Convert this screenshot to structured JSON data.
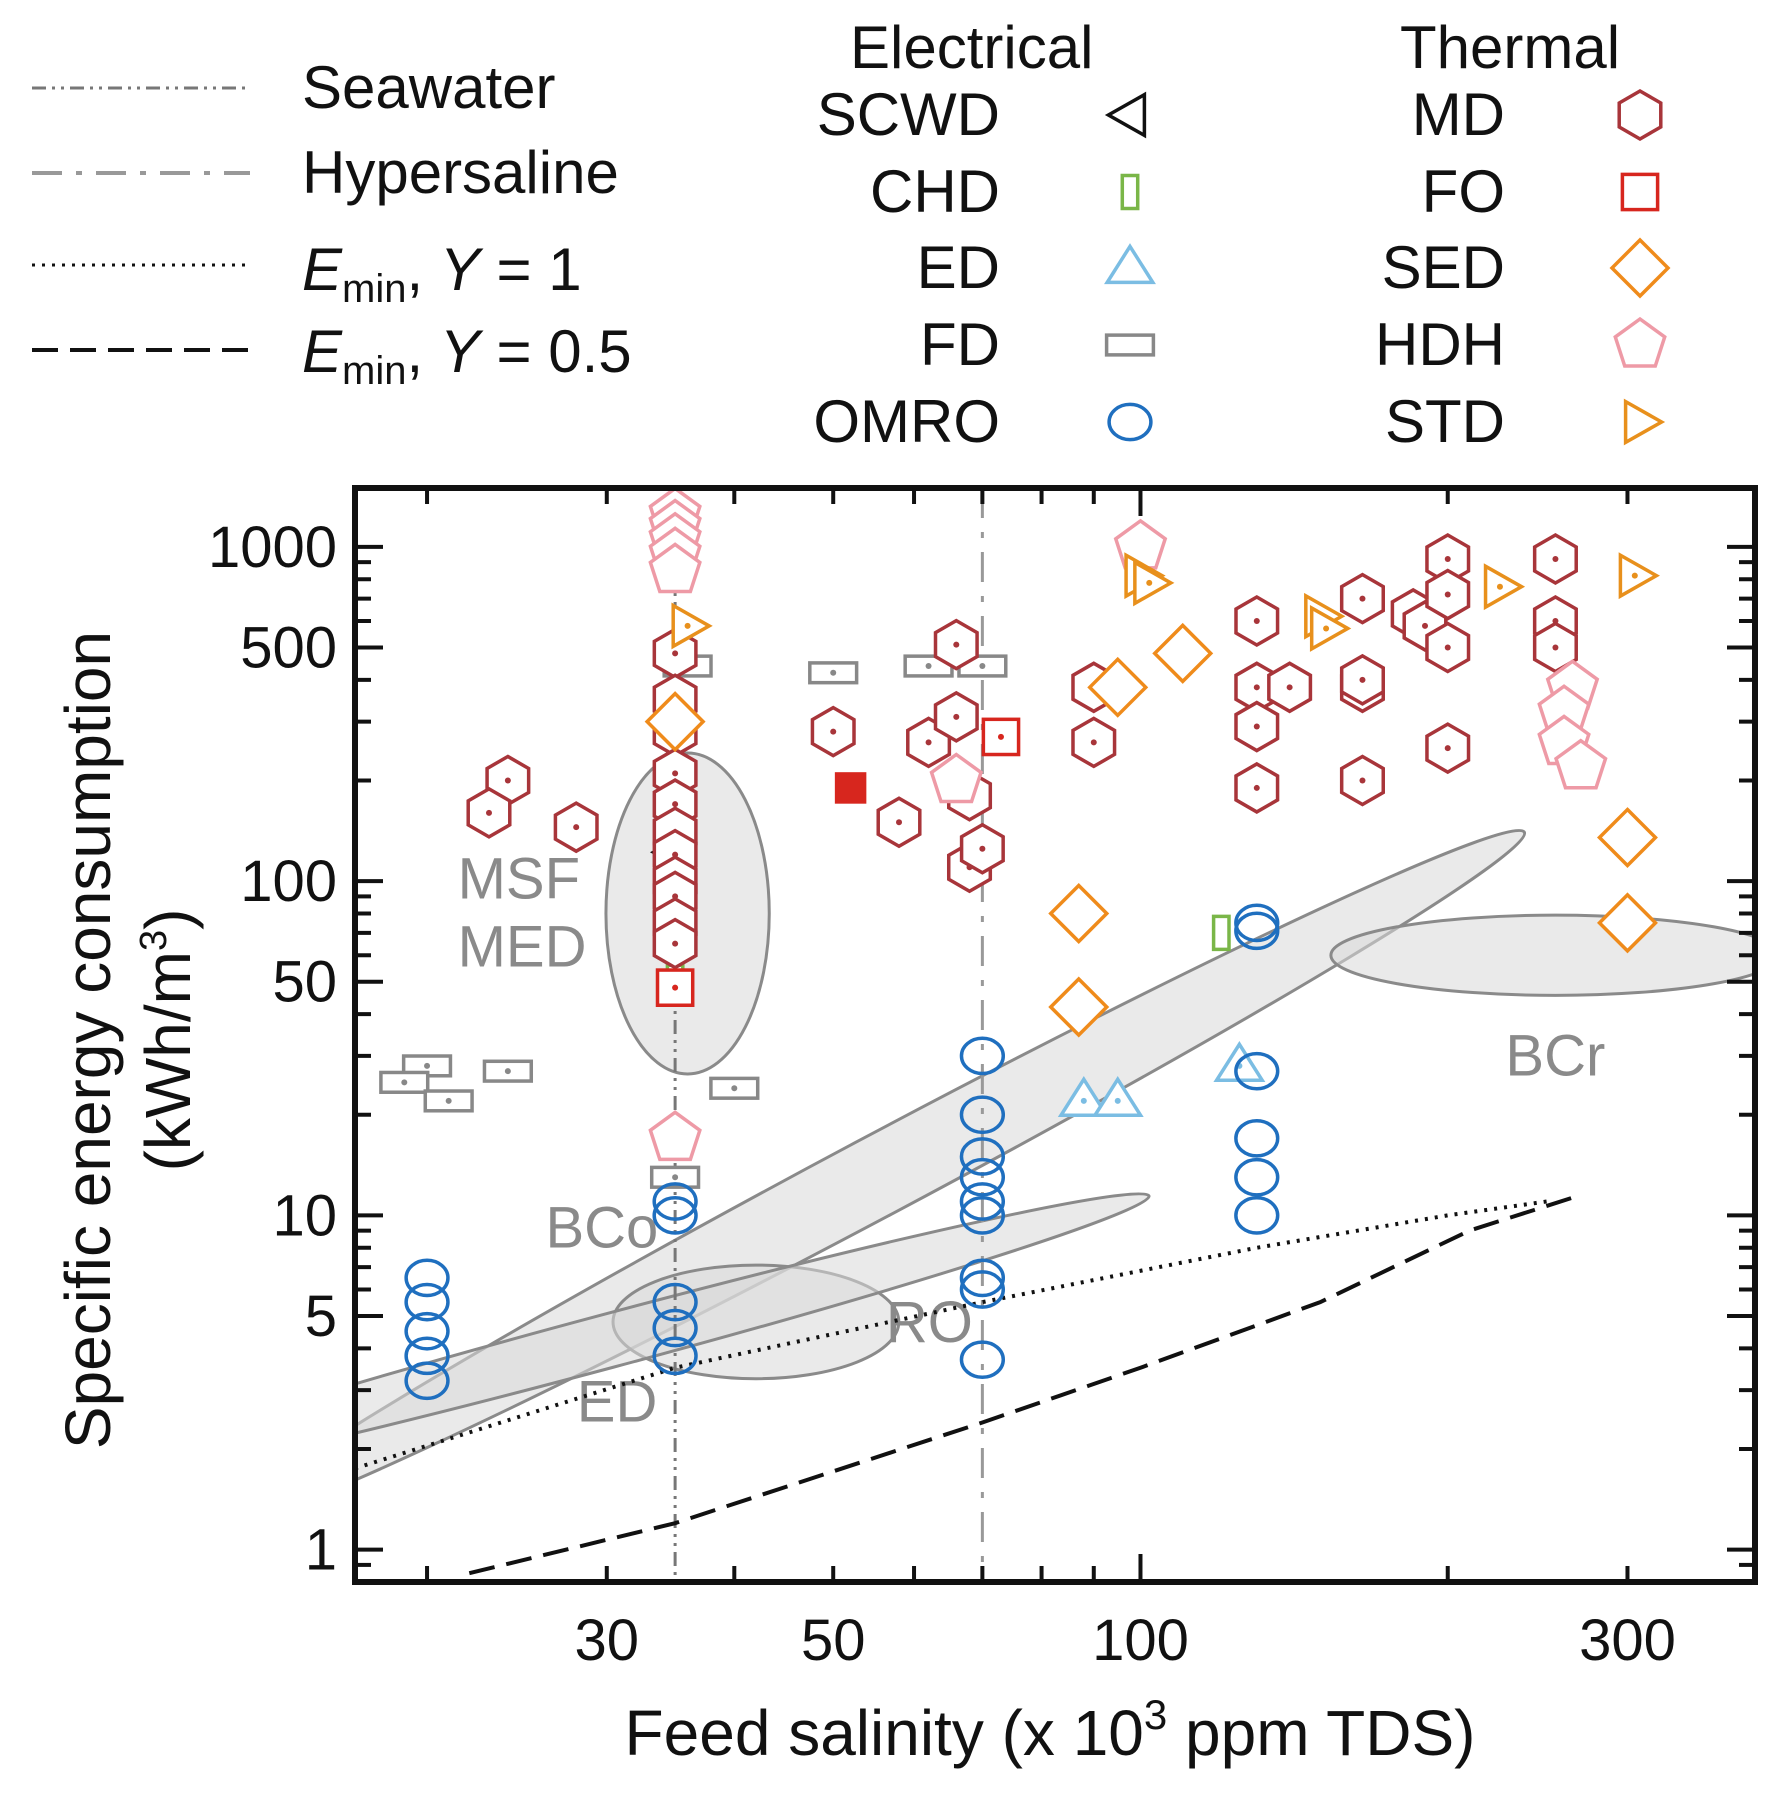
{
  "chart_data": {
    "type": "scatter",
    "x_scale": "log",
    "y_scale": "log",
    "xlabel_main": "Feed salinity (x 10",
    "xlabel_sup": "3",
    "xlabel_end": " ppm TDS)",
    "ylabel_line1": "Specific energy consumption",
    "ylabel_line2_main": "(kWh/m",
    "ylabel_line2_sup": "3",
    "ylabel_line2_end": ")",
    "xlim": [
      17,
      400
    ],
    "ylim": [
      0.8,
      1500
    ],
    "x_ticks": [
      {
        "value": 30,
        "label": "30"
      },
      {
        "value": 50,
        "label": "50"
      },
      {
        "value": 100,
        "label": "100"
      },
      {
        "value": 300,
        "label": "300"
      }
    ],
    "y_ticks": [
      {
        "value": 1,
        "label": "1"
      },
      {
        "value": 5,
        "label": "5"
      },
      {
        "value": 10,
        "label": "10"
      },
      {
        "value": 50,
        "label": "50"
      },
      {
        "value": 100,
        "label": "100"
      },
      {
        "value": 500,
        "label": "500"
      },
      {
        "value": 1000,
        "label": "1000"
      }
    ],
    "legend_headers": {
      "electrical": "Electrical",
      "thermal": "Thermal"
    },
    "line_legend": [
      {
        "key": "seawater",
        "label": "Seawater",
        "style": "dashdotdot"
      },
      {
        "key": "hypersaline",
        "label": "Hypersaline",
        "style": "dashdot"
      },
      {
        "key": "emin1",
        "label_italic": "E",
        "label_sub": "min",
        "label_mid": ", ",
        "label_italic2": "Y",
        "label_end": " = 1",
        "style": "dotted"
      },
      {
        "key": "emin05",
        "label_italic": "E",
        "label_sub": "min",
        "label_mid": ", ",
        "label_italic2": "Y",
        "label_end": " = 0.5",
        "style": "dashed"
      }
    ],
    "reference_lines": {
      "seawater_x": 35,
      "hypersaline_x": 70,
      "emin_y1": [
        [
          17,
          1.75
        ],
        [
          35,
          3.5
        ],
        [
          70,
          5.5
        ],
        [
          130,
          8
        ],
        [
          200,
          10
        ],
        [
          250,
          11
        ]
      ],
      "emin_y05": [
        [
          22,
          0.85
        ],
        [
          35,
          1.2
        ],
        [
          70,
          2.4
        ],
        [
          100,
          3.5
        ],
        [
          150,
          5.5
        ],
        [
          210,
          9
        ],
        [
          270,
          11.5
        ]
      ]
    },
    "regions": [
      {
        "label": "MSF",
        "label2": "MED",
        "cx": 36,
        "cy": 80,
        "rx_log": 0.08,
        "ry_log": 0.48,
        "angle": 0
      },
      {
        "label": "BCo",
        "cx": 55,
        "cy": 13,
        "rx_log": 0.72,
        "ry_log": 0.12,
        "angle": -28
      },
      {
        "label": "RO",
        "cx": 42,
        "cy": 4.8,
        "rx_log": 0.14,
        "ry_log": 0.17,
        "angle": 0
      },
      {
        "label": "ED",
        "cx": 30,
        "cy": 4.2,
        "rx_log": 0.55,
        "ry_log": 0.08,
        "angle": -15
      },
      {
        "label": "BCr",
        "cx": 255,
        "cy": 60,
        "rx_log": 0.22,
        "ry_log": 0.12,
        "angle": 0
      }
    ],
    "series": [
      {
        "name": "SCWD",
        "group": "Electrical",
        "marker": "triangle-left",
        "color": "#111111",
        "points": [
          [
            35,
            122
          ]
        ]
      },
      {
        "name": "CHD",
        "group": "Electrical",
        "marker": "small-rect",
        "color": "#7ab648",
        "points": [
          [
            35,
            50
          ],
          [
            120,
            70
          ]
        ]
      },
      {
        "name": "ED",
        "group": "Electrical",
        "marker": "triangle-up",
        "color": "#7bbde3",
        "points": [
          [
            88,
            22
          ],
          [
            95,
            22
          ],
          [
            125,
            28
          ]
        ]
      },
      {
        "name": "FD",
        "group": "Electrical",
        "marker": "flat-rect",
        "color": "#888888",
        "points": [
          [
            20,
            28
          ],
          [
            19,
            25
          ],
          [
            21,
            22
          ],
          [
            24,
            27
          ],
          [
            40,
            24
          ],
          [
            35,
            13
          ],
          [
            36,
            440
          ],
          [
            50,
            420
          ],
          [
            62,
            440
          ],
          [
            70,
            440
          ]
        ]
      },
      {
        "name": "OMRO",
        "group": "Electrical",
        "marker": "circle",
        "color": "#1f6fbf",
        "points": [
          [
            20,
            6.5
          ],
          [
            20,
            5.5
          ],
          [
            20,
            4.5
          ],
          [
            20,
            3.8
          ],
          [
            20,
            3.2
          ],
          [
            35,
            11
          ],
          [
            35,
            10
          ],
          [
            35,
            5.5
          ],
          [
            35,
            4.6
          ],
          [
            35,
            3.8
          ],
          [
            70,
            30
          ],
          [
            70,
            20
          ],
          [
            70,
            15
          ],
          [
            70,
            13
          ],
          [
            70,
            11
          ],
          [
            70,
            10
          ],
          [
            70,
            6.5
          ],
          [
            70,
            6
          ],
          [
            70,
            3.7
          ],
          [
            130,
            75
          ],
          [
            130,
            71
          ],
          [
            130,
            27
          ],
          [
            130,
            17
          ],
          [
            130,
            13
          ],
          [
            130,
            10
          ]
        ]
      },
      {
        "name": "MD",
        "group": "Thermal",
        "marker": "hexagon",
        "color": "#a8353a",
        "points": [
          [
            24,
            200
          ],
          [
            23,
            160
          ],
          [
            28,
            145
          ],
          [
            35,
            480
          ],
          [
            35,
            350
          ],
          [
            35,
            280
          ],
          [
            35,
            210
          ],
          [
            35,
            170
          ],
          [
            35,
            140
          ],
          [
            35,
            120
          ],
          [
            35,
            100
          ],
          [
            35,
            90
          ],
          [
            35,
            75
          ],
          [
            35,
            65
          ],
          [
            50,
            280
          ],
          [
            58,
            150
          ],
          [
            62,
            260
          ],
          [
            66,
            510
          ],
          [
            66,
            310
          ],
          [
            68,
            180
          ],
          [
            68,
            110
          ],
          [
            70,
            125
          ],
          [
            90,
            380
          ],
          [
            90,
            260
          ],
          [
            130,
            600
          ],
          [
            130,
            380
          ],
          [
            130,
            290
          ],
          [
            130,
            190
          ],
          [
            140,
            380
          ],
          [
            165,
            700
          ],
          [
            165,
            380
          ],
          [
            165,
            400
          ],
          [
            165,
            200
          ],
          [
            185,
            630
          ],
          [
            190,
            580
          ],
          [
            200,
            920
          ],
          [
            200,
            720
          ],
          [
            200,
            500
          ],
          [
            200,
            250
          ],
          [
            255,
            920
          ],
          [
            255,
            600
          ],
          [
            255,
            500
          ]
        ]
      },
      {
        "name": "FO",
        "group": "Thermal",
        "marker": "square",
        "color": "#d7261e",
        "points": [
          [
            73,
            270
          ],
          [
            35,
            48
          ]
        ]
      },
      {
        "name": "FO (filled)",
        "group": "Thermal",
        "marker": "filled-square",
        "color": "#d7261e",
        "points": [
          [
            52,
            190
          ]
        ]
      },
      {
        "name": "SED",
        "group": "Thermal",
        "marker": "diamond",
        "color": "#ef8b1b",
        "points": [
          [
            35,
            300
          ],
          [
            95,
            380
          ],
          [
            110,
            480
          ],
          [
            87,
            80
          ],
          [
            87,
            42
          ],
          [
            300,
            135
          ],
          [
            300,
            75
          ]
        ]
      },
      {
        "name": "HDH",
        "group": "Thermal",
        "marker": "pentagon",
        "color": "#ee9aa6",
        "points": [
          [
            35,
            1250
          ],
          [
            35,
            1150
          ],
          [
            35,
            1050
          ],
          [
            35,
            950
          ],
          [
            35,
            850
          ],
          [
            66,
            200
          ],
          [
            100,
            1000
          ],
          [
            35,
            17
          ],
          [
            265,
            380
          ],
          [
            260,
            320
          ],
          [
            260,
            260
          ],
          [
            270,
            220
          ]
        ]
      },
      {
        "name": "STD",
        "group": "Thermal",
        "marker": "triangle-right",
        "color": "#e8901c",
        "points": [
          [
            36,
            580
          ],
          [
            100,
            820
          ],
          [
            102,
            780
          ],
          [
            150,
            620
          ],
          [
            152,
            570
          ],
          [
            225,
            760
          ],
          [
            305,
            820
          ]
        ]
      }
    ]
  }
}
